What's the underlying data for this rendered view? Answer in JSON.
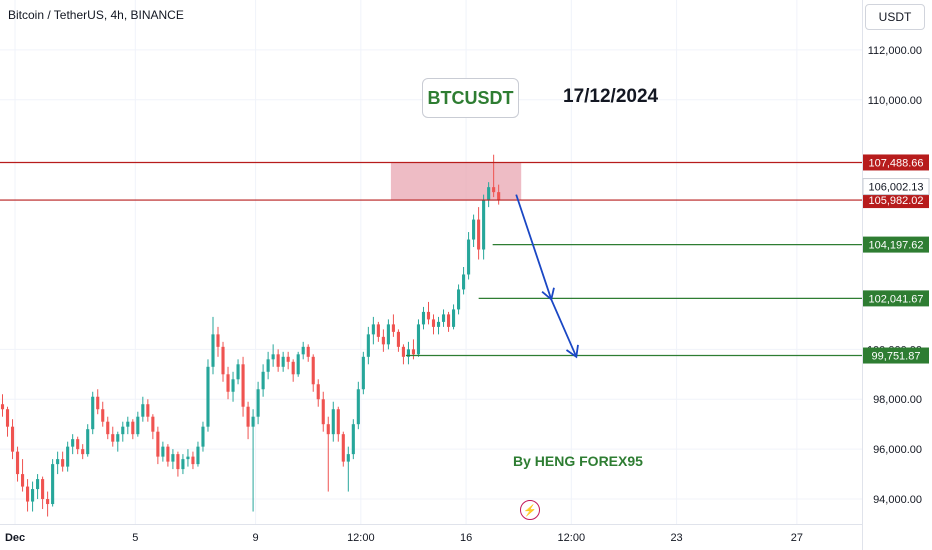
{
  "header": {
    "title": "Bitcoin / TetherUS, 4h, BINANCE"
  },
  "toolbar": {
    "currency_button": "USDT"
  },
  "annotations": {
    "symbol_box": "BTCUSDT",
    "date": "17/12/2024",
    "author": "By HENG FOREX95",
    "flash_icon": "lightning-icon"
  },
  "colors": {
    "bull": "#26a69a",
    "bear": "#ef5350",
    "resistance": "#b71c1c",
    "support": "#2e7d32",
    "zone": "#e8a6b2",
    "arrow": "#1a47c4"
  },
  "chart_data": {
    "type": "candlestick",
    "title": "Bitcoin / TetherUS, 4h, BINANCE",
    "xlabel": "",
    "ylabel": "",
    "ylim": [
      93000,
      114000
    ],
    "xlim": [
      "2024-11-30T12:00",
      "2024-12-29T04:00"
    ],
    "yticks": [
      94000,
      96000,
      98000,
      100000,
      110000,
      112000
    ],
    "ytick_labels": [
      "94,000.00",
      "96,000.00",
      "98,000.00",
      "100,000.00",
      "110,000.00",
      "112,000.00"
    ],
    "x_ticks": [
      {
        "label": "Dec",
        "t": "2024-12-01T00:00"
      },
      {
        "label": "5",
        "t": "2024-12-05T00:00"
      },
      {
        "label": "9",
        "t": "2024-12-09T00:00"
      },
      {
        "label": "12:00",
        "t": "2024-12-12T12:00"
      },
      {
        "label": "16",
        "t": "2024-12-16T00:00"
      },
      {
        "label": "12:00",
        "t": "2024-12-19T12:00"
      },
      {
        "label": "23",
        "t": "2024-12-23T00:00"
      },
      {
        "label": "27",
        "t": "2024-12-27T00:00"
      }
    ],
    "candle_start": "2024-11-30T12:00",
    "candle_interval_hours": 4,
    "candles": [
      [
        97800,
        98200,
        97300,
        97600
      ],
      [
        97600,
        97700,
        96500,
        96900
      ],
      [
        96900,
        97200,
        95600,
        95900
      ],
      [
        95900,
        96100,
        94700,
        95000
      ],
      [
        95000,
        95600,
        94300,
        94500
      ],
      [
        94500,
        94800,
        93500,
        93900
      ],
      [
        93900,
        94700,
        93500,
        94400
      ],
      [
        94400,
        95000,
        94000,
        94800
      ],
      [
        94800,
        94900,
        93600,
        94000
      ],
      [
        94000,
        94300,
        93300,
        93800
      ],
      [
        93800,
        95600,
        93700,
        95400
      ],
      [
        95400,
        95900,
        95000,
        95600
      ],
      [
        95600,
        95900,
        95100,
        95300
      ],
      [
        95300,
        96300,
        95100,
        96100
      ],
      [
        96100,
        96600,
        95800,
        96400
      ],
      [
        96400,
        96500,
        95800,
        96000
      ],
      [
        96000,
        96200,
        95600,
        95800
      ],
      [
        95800,
        97000,
        95700,
        96800
      ],
      [
        96800,
        98300,
        96600,
        98100
      ],
      [
        98100,
        98400,
        97400,
        97600
      ],
      [
        97600,
        97900,
        96900,
        97100
      ],
      [
        97100,
        97300,
        96400,
        96600
      ],
      [
        96600,
        96900,
        96100,
        96300
      ],
      [
        96300,
        96700,
        95900,
        96600
      ],
      [
        96600,
        97100,
        96300,
        96900
      ],
      [
        96900,
        97300,
        96600,
        97100
      ],
      [
        97100,
        97200,
        96400,
        96600
      ],
      [
        96600,
        97500,
        96500,
        97300
      ],
      [
        97300,
        98100,
        97100,
        97800
      ],
      [
        97800,
        98000,
        97100,
        97300
      ],
      [
        97300,
        97400,
        96400,
        96700
      ],
      [
        96700,
        96900,
        95400,
        95700
      ],
      [
        95700,
        96300,
        95500,
        96100
      ],
      [
        96100,
        96200,
        95300,
        95500
      ],
      [
        95500,
        96000,
        95200,
        95800
      ],
      [
        95800,
        95900,
        94900,
        95200
      ],
      [
        95200,
        95800,
        95000,
        95600
      ],
      [
        95600,
        96000,
        95300,
        95700
      ],
      [
        95700,
        95900,
        95200,
        95400
      ],
      [
        95400,
        96300,
        95300,
        96100
      ],
      [
        96100,
        97100,
        95900,
        96900
      ],
      [
        96900,
        99600,
        96700,
        99300
      ],
      [
        99300,
        101300,
        99000,
        100600
      ],
      [
        100600,
        100900,
        99700,
        100100
      ],
      [
        100100,
        100300,
        98700,
        99000
      ],
      [
        99000,
        99300,
        98000,
        98300
      ],
      [
        98300,
        99100,
        97900,
        98800
      ],
      [
        98800,
        99600,
        98600,
        99400
      ],
      [
        99400,
        99700,
        97300,
        97700
      ],
      [
        97700,
        97900,
        96400,
        96900
      ],
      [
        96900,
        97600,
        93500,
        97300
      ],
      [
        97300,
        98700,
        97000,
        98400
      ],
      [
        98400,
        99400,
        98100,
        99100
      ],
      [
        99100,
        99900,
        98800,
        99600
      ],
      [
        99600,
        100200,
        99300,
        99800
      ],
      [
        99800,
        100000,
        99100,
        99300
      ],
      [
        99300,
        99900,
        99100,
        99700
      ],
      [
        99700,
        99900,
        99200,
        99500
      ],
      [
        99500,
        99600,
        98700,
        99000
      ],
      [
        99000,
        99900,
        98900,
        99800
      ],
      [
        99800,
        100300,
        99600,
        100100
      ],
      [
        100100,
        100200,
        99500,
        99700
      ],
      [
        99700,
        99800,
        98300,
        98600
      ],
      [
        98600,
        98800,
        97700,
        98000
      ],
      [
        98000,
        98300,
        96700,
        97000
      ],
      [
        97000,
        97300,
        94300,
        96600
      ],
      [
        96600,
        97900,
        96300,
        97600
      ],
      [
        97600,
        97700,
        96300,
        96600
      ],
      [
        96600,
        96700,
        95300,
        95500
      ],
      [
        95500,
        96100,
        94300,
        95800
      ],
      [
        95800,
        97200,
        95600,
        97000
      ],
      [
        97000,
        98700,
        96800,
        98400
      ],
      [
        98400,
        99900,
        98200,
        99700
      ],
      [
        99700,
        100900,
        99400,
        100600
      ],
      [
        100600,
        101300,
        100200,
        101000
      ],
      [
        101000,
        101100,
        100300,
        100500
      ],
      [
        100500,
        100800,
        99900,
        100200
      ],
      [
        100200,
        101200,
        100000,
        101000
      ],
      [
        101000,
        101400,
        100500,
        100700
      ],
      [
        100700,
        100800,
        99900,
        100100
      ],
      [
        100100,
        100200,
        99400,
        99700
      ],
      [
        99700,
        100300,
        99400,
        100000
      ],
      [
        100000,
        100400,
        99600,
        99800
      ],
      [
        99800,
        101200,
        99700,
        101000
      ],
      [
        101000,
        101700,
        100800,
        101500
      ],
      [
        101500,
        101900,
        101000,
        101200
      ],
      [
        101200,
        101400,
        100600,
        100900
      ],
      [
        100900,
        101300,
        100600,
        101100
      ],
      [
        101100,
        101600,
        100900,
        101400
      ],
      [
        101400,
        101500,
        100700,
        100900
      ],
      [
        100900,
        101800,
        100800,
        101600
      ],
      [
        101600,
        102600,
        101400,
        102400
      ],
      [
        102400,
        103300,
        102200,
        103000
      ],
      [
        103000,
        104700,
        102800,
        104400
      ],
      [
        104400,
        105400,
        104100,
        105200
      ],
      [
        105200,
        105700,
        103600,
        104000
      ],
      [
        104000,
        106200,
        103600,
        106000
      ],
      [
        106000,
        106700,
        105700,
        106500
      ],
      [
        106500,
        107800,
        106100,
        106300
      ],
      [
        106300,
        106600,
        105800,
        106000
      ]
    ],
    "levels": [
      {
        "label": "107,488.66",
        "value": 107488.66,
        "color": "#b71c1c",
        "kind": "resistance"
      },
      {
        "label": "105,982.02",
        "value": 105982.02,
        "color": "#b71c1c",
        "kind": "resistance"
      },
      {
        "label": "104,197.62",
        "value": 104197.62,
        "color": "#2e7d32",
        "kind": "support"
      },
      {
        "label": "102,041.67",
        "value": 102041.67,
        "color": "#2e7d32",
        "kind": "support"
      },
      {
        "label": "99,751.87",
        "value": 99751.87,
        "color": "#2e7d32",
        "kind": "support"
      }
    ],
    "current_price": {
      "label": "106,002.13",
      "value": 106002.13
    },
    "zone": {
      "from_time": "2024-12-13T12:00",
      "to_time": "2024-12-17T20:00",
      "from_price": 105982.02,
      "to_price": 107488.66
    },
    "projection": [
      {
        "t": "2024-12-17T16:00",
        "price": 106200
      },
      {
        "t": "2024-12-18T20:00",
        "price": 102000
      },
      {
        "t": "2024-12-19T16:00",
        "price": 99700
      }
    ]
  }
}
